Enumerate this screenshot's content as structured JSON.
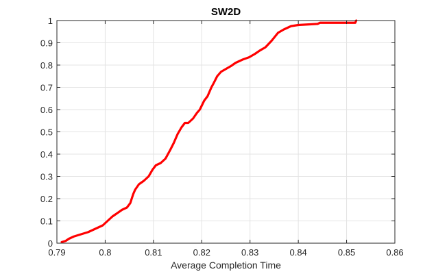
{
  "chart_data": {
    "type": "line",
    "title": "SW2D",
    "xlabel": "Average Completion Time",
    "ylabel": "",
    "xlim": [
      0.79,
      0.86
    ],
    "ylim": [
      0,
      1
    ],
    "xticks": [
      0.79,
      0.8,
      0.81,
      0.82,
      0.83,
      0.84,
      0.85,
      0.86
    ],
    "xtick_labels": [
      "0.79",
      "0.8",
      "0.81",
      "0.82",
      "0.83",
      "0.84",
      "0.85",
      "0.86"
    ],
    "yticks": [
      0,
      0.1,
      0.2,
      0.3,
      0.4,
      0.5,
      0.6,
      0.7,
      0.8,
      0.9,
      1
    ],
    "ytick_labels": [
      "0",
      "0.1",
      "0.2",
      "0.3",
      "0.4",
      "0.5",
      "0.6",
      "0.7",
      "0.8",
      "0.9",
      "1"
    ],
    "grid": true,
    "series": [
      {
        "color": "#ff0000",
        "x": [
          0.791,
          0.7918,
          0.7925,
          0.7935,
          0.795,
          0.7965,
          0.798,
          0.7995,
          0.8005,
          0.8015,
          0.8025,
          0.8035,
          0.8045,
          0.8052,
          0.8058,
          0.8062,
          0.807,
          0.808,
          0.809,
          0.8098,
          0.8105,
          0.8115,
          0.8125,
          0.8135,
          0.8142,
          0.815,
          0.8158,
          0.8165,
          0.8172,
          0.8182,
          0.819,
          0.8196,
          0.8205,
          0.8212,
          0.822,
          0.8225,
          0.8232,
          0.824,
          0.8248,
          0.826,
          0.827,
          0.8285,
          0.8298,
          0.831,
          0.832,
          0.8332,
          0.8345,
          0.8358,
          0.837,
          0.8385,
          0.84,
          0.844,
          0.8445,
          0.8518,
          0.852
        ],
        "y": [
          0.005,
          0.01,
          0.02,
          0.03,
          0.04,
          0.05,
          0.065,
          0.08,
          0.1,
          0.12,
          0.135,
          0.15,
          0.16,
          0.18,
          0.22,
          0.24,
          0.265,
          0.28,
          0.3,
          0.33,
          0.35,
          0.36,
          0.38,
          0.42,
          0.45,
          0.49,
          0.52,
          0.54,
          0.54,
          0.56,
          0.585,
          0.6,
          0.64,
          0.66,
          0.7,
          0.72,
          0.75,
          0.77,
          0.78,
          0.795,
          0.81,
          0.825,
          0.835,
          0.85,
          0.865,
          0.88,
          0.91,
          0.945,
          0.96,
          0.975,
          0.98,
          0.985,
          0.99,
          0.99,
          1.0
        ]
      }
    ]
  }
}
